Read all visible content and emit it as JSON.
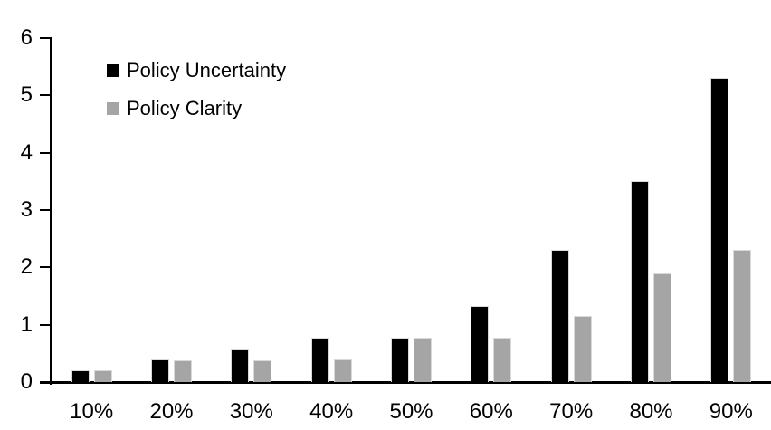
{
  "chart_data": {
    "type": "bar",
    "title": "",
    "xlabel": "",
    "ylabel": "",
    "categories": [
      "10%",
      "20%",
      "30%",
      "40%",
      "50%",
      "60%",
      "70%",
      "80%",
      "90%"
    ],
    "series": [
      {
        "name": "Policy Uncertainty",
        "color": "#000000",
        "values": [
          0.2,
          0.4,
          0.57,
          0.77,
          0.78,
          1.33,
          2.3,
          3.5,
          5.3
        ]
      },
      {
        "name": "Policy Clarity",
        "color": "#a5a5a5",
        "values": [
          0.2,
          0.38,
          0.38,
          0.39,
          0.77,
          0.77,
          1.15,
          1.9,
          2.3
        ]
      }
    ],
    "ylim": [
      0,
      6
    ],
    "yticks": [
      0,
      1,
      2,
      3,
      4,
      5,
      6
    ],
    "grid": false,
    "legend_position": "top-left-inside",
    "axis_color": "#000000",
    "bar_border_color": "#d9d9d9",
    "background": "#ffffff"
  }
}
